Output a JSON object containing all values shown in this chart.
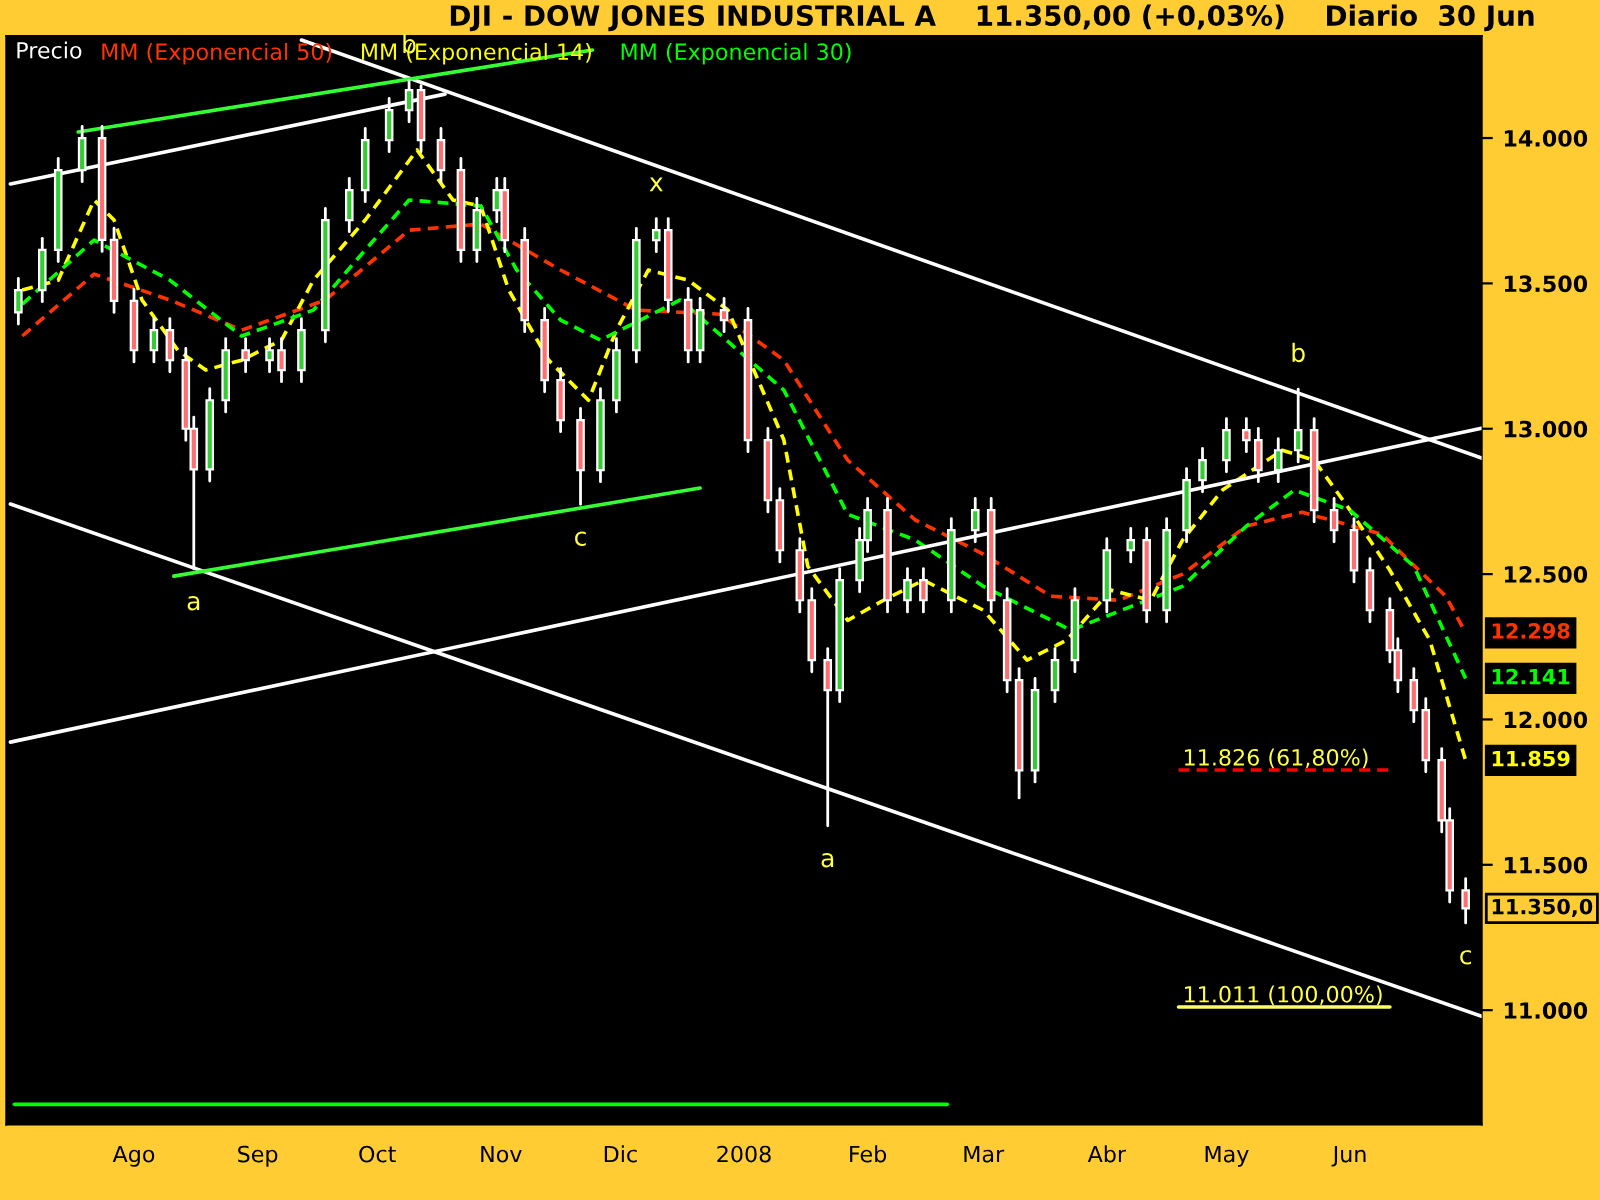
{
  "chart_data": {
    "type": "candlestick",
    "title": "DJI - DOW JONES INDUSTRIAL A    11.350,00 (+0,03%)    Diario  30 Jun",
    "x": [
      "2007-07-03",
      "2007-07-09",
      "2007-07-13",
      "2007-07-19",
      "2007-07-24",
      "2007-07-27",
      "2007-08-01",
      "2007-08-06",
      "2007-08-10",
      "2007-08-14",
      "2007-08-16",
      "2007-08-20",
      "2007-08-24",
      "2007-08-29",
      "2007-09-04",
      "2007-09-07",
      "2007-09-12",
      "2007-09-18",
      "2007-09-24",
      "2007-09-28",
      "2007-10-04",
      "2007-10-09",
      "2007-10-12",
      "2007-10-17",
      "2007-10-22",
      "2007-10-26",
      "2007-10-31",
      "2007-11-02",
      "2007-11-07",
      "2007-11-12",
      "2007-11-16",
      "2007-11-21",
      "2007-11-26",
      "2007-11-30",
      "2007-12-05",
      "2007-12-10",
      "2007-12-13",
      "2007-12-18",
      "2007-12-21",
      "2007-12-27",
      "2008-01-02",
      "2008-01-07",
      "2008-01-10",
      "2008-01-15",
      "2008-01-18",
      "2008-01-22",
      "2008-01-25",
      "2008-01-30",
      "2008-02-01",
      "2008-02-06",
      "2008-02-11",
      "2008-02-15",
      "2008-02-22",
      "2008-02-28",
      "2008-03-03",
      "2008-03-07",
      "2008-03-10",
      "2008-03-14",
      "2008-03-19",
      "2008-03-24",
      "2008-04-01",
      "2008-04-07",
      "2008-04-11",
      "2008-04-16",
      "2008-04-21",
      "2008-04-25",
      "2008-05-01",
      "2008-05-06",
      "2008-05-09",
      "2008-05-14",
      "2008-05-19",
      "2008-05-23",
      "2008-05-28",
      "2008-06-02",
      "2008-06-06",
      "2008-06-11",
      "2008-06-13",
      "2008-06-17",
      "2008-06-20",
      "2008-06-24",
      "2008-06-26",
      "2008-06-30"
    ],
    "ohlc": [
      [
        13400,
        13517,
        13360,
        13477
      ],
      [
        13477,
        13655,
        13437,
        13615
      ],
      [
        13615,
        13930,
        13575,
        13890
      ],
      [
        13890,
        14040,
        13850,
        14000
      ],
      [
        14000,
        14040,
        13610,
        13650
      ],
      [
        13650,
        13690,
        13400,
        13440
      ],
      [
        13440,
        13480,
        13230,
        13270
      ],
      [
        13270,
        13379,
        13230,
        13339
      ],
      [
        13339,
        13379,
        13196,
        13236
      ],
      [
        13236,
        13276,
        12960,
        13000
      ],
      [
        13000,
        13040,
        12518,
        12860
      ],
      [
        12860,
        13138,
        12820,
        13098
      ],
      [
        13098,
        13310,
        13058,
        13270
      ],
      [
        13270,
        13310,
        13196,
        13236
      ],
      [
        13236,
        13310,
        13196,
        13270
      ],
      [
        13270,
        13310,
        13162,
        13202
      ],
      [
        13202,
        13379,
        13162,
        13339
      ],
      [
        13339,
        13758,
        13299,
        13718
      ],
      [
        13718,
        13861,
        13678,
        13821
      ],
      [
        13821,
        14033,
        13781,
        13993
      ],
      [
        13993,
        14136,
        13953,
        14096
      ],
      [
        14096,
        14198,
        14056,
        14165
      ],
      [
        14165,
        14180,
        13953,
        13993
      ],
      [
        13993,
        14033,
        13850,
        13890
      ],
      [
        13890,
        13930,
        13575,
        13615
      ],
      [
        13615,
        13792,
        13575,
        13752
      ],
      [
        13752,
        13861,
        13712,
        13821
      ],
      [
        13821,
        13861,
        13609,
        13649
      ],
      [
        13649,
        13689,
        13334,
        13374
      ],
      [
        13374,
        13414,
        13127,
        13167
      ],
      [
        13167,
        13207,
        12990,
        13030
      ],
      [
        13030,
        13070,
        12740,
        12858
      ],
      [
        12858,
        13138,
        12818,
        13098
      ],
      [
        13098,
        13310,
        13058,
        13270
      ],
      [
        13270,
        13689,
        13230,
        13649
      ],
      [
        13649,
        13723,
        13609,
        13683
      ],
      [
        13683,
        13723,
        13403,
        13443
      ],
      [
        13443,
        13483,
        13230,
        13270
      ],
      [
        13270,
        13448,
        13230,
        13408
      ],
      [
        13408,
        13448,
        13334,
        13374
      ],
      [
        13374,
        13414,
        12921,
        12961
      ],
      [
        12961,
        13001,
        12714,
        12754
      ],
      [
        12754,
        12794,
        12542,
        12582
      ],
      [
        12582,
        12622,
        12370,
        12410
      ],
      [
        12410,
        12450,
        12164,
        12204
      ],
      [
        12204,
        12244,
        11634,
        12101
      ],
      [
        12101,
        12519,
        12061,
        12479
      ],
      [
        12479,
        12657,
        12439,
        12617
      ],
      [
        12617,
        12760,
        12577,
        12720
      ],
      [
        12720,
        12760,
        12370,
        12410
      ],
      [
        12410,
        12519,
        12370,
        12479
      ],
      [
        12479,
        12519,
        12370,
        12410
      ],
      [
        12410,
        12691,
        12370,
        12651
      ],
      [
        12651,
        12760,
        12611,
        12720
      ],
      [
        12720,
        12760,
        12370,
        12410
      ],
      [
        12410,
        12450,
        12095,
        12135
      ],
      [
        12135,
        12175,
        11730,
        11825
      ],
      [
        11825,
        12141,
        11785,
        12101
      ],
      [
        12101,
        12244,
        12061,
        12204
      ],
      [
        12204,
        12450,
        12164,
        12410
      ],
      [
        12410,
        12622,
        12370,
        12582
      ],
      [
        12582,
        12657,
        12542,
        12617
      ],
      [
        12617,
        12657,
        12336,
        12376
      ],
      [
        12376,
        12691,
        12336,
        12651
      ],
      [
        12651,
        12863,
        12611,
        12823
      ],
      [
        12823,
        12932,
        12783,
        12892
      ],
      [
        12892,
        13035,
        12852,
        12995
      ],
      [
        12995,
        13035,
        12921,
        12961
      ],
      [
        12961,
        13001,
        12818,
        12858
      ],
      [
        12858,
        12966,
        12818,
        12926
      ],
      [
        12926,
        13136,
        12886,
        12995
      ],
      [
        12995,
        13035,
        12680,
        12720
      ],
      [
        12720,
        12760,
        12611,
        12651
      ],
      [
        12651,
        12691,
        12473,
        12513
      ],
      [
        12513,
        12553,
        12336,
        12376
      ],
      [
        12376,
        12416,
        12198,
        12238
      ],
      [
        12238,
        12278,
        12095,
        12135
      ],
      [
        12135,
        12175,
        11992,
        12032
      ],
      [
        12032,
        12072,
        11820,
        11860
      ],
      [
        11860,
        11900,
        11613,
        11653
      ],
      [
        11653,
        11693,
        11372,
        11412
      ],
      [
        11412,
        11452,
        11300,
        11350
      ]
    ],
    "value_labels": [
      null,
      null,
      null,
      null,
      null,
      null,
      null,
      null,
      null,
      null,
      null,
      null,
      null,
      null,
      null,
      null,
      null,
      null,
      null,
      null,
      null,
      null,
      null,
      null,
      null,
      null,
      null,
      null,
      null,
      null,
      null,
      null,
      null,
      null,
      null,
      null,
      null,
      null,
      null,
      null,
      null,
      null,
      null,
      null,
      null,
      null,
      null,
      null,
      null,
      null,
      null,
      null,
      null,
      null,
      null,
      null,
      null,
      null,
      null,
      null,
      null,
      null,
      null,
      null,
      null,
      null,
      null,
      null,
      null,
      null,
      null,
      null,
      null,
      null,
      null,
      null,
      null,
      null,
      null,
      null,
      null,
      "11.350,0"
    ],
    "series": [
      {
        "type": "line",
        "name": "MM (Exponencial 50)",
        "color": "#ff3300",
        "line_style": "dashed",
        "x": [
          "2007-07-04",
          "2007-07-22",
          "2007-08-10",
          "2007-08-28",
          "2007-09-18",
          "2007-10-09",
          "2007-10-27",
          "2007-11-16",
          "2007-12-05",
          "2007-12-26",
          "2008-01-11",
          "2008-01-27",
          "2008-02-13",
          "2008-03-01",
          "2008-03-18",
          "2008-04-04",
          "2008-04-20",
          "2008-05-06",
          "2008-05-20",
          "2008-06-09",
          "2008-06-25",
          "2008-06-30"
        ],
        "values": [
          13319,
          13532,
          13443,
          13339,
          13443,
          13683,
          13704,
          13546,
          13408,
          13394,
          13236,
          12892,
          12686,
          12569,
          12424,
          12410,
          12500,
          12665,
          12713,
          12637,
          12424,
          12298
        ],
        "value_labels": [
          null,
          null,
          null,
          null,
          null,
          null,
          null,
          null,
          null,
          null,
          null,
          null,
          null,
          null,
          null,
          null,
          null,
          null,
          null,
          null,
          null,
          "12.298"
        ]
      },
      {
        "type": "line",
        "name": "MM (Exponencial 14)",
        "color": "#ffff00",
        "line_style": "dashed",
        "x": [
          "2007-07-04",
          "2007-07-13",
          "2007-07-22",
          "2007-07-27",
          "2007-08-03",
          "2007-08-12",
          "2007-08-19",
          "2007-08-28",
          "2007-09-07",
          "2007-09-15",
          "2007-09-28",
          "2007-10-11",
          "2007-10-20",
          "2007-10-27",
          "2007-11-03",
          "2007-11-13",
          "2007-11-23",
          "2007-11-30",
          "2007-12-08",
          "2007-12-18",
          "2007-12-28",
          "2008-01-11",
          "2008-01-17",
          "2008-01-27",
          "2008-02-05",
          "2008-02-15",
          "2008-03-01",
          "2008-03-12",
          "2008-03-22",
          "2008-04-02",
          "2008-04-12",
          "2008-04-20",
          "2008-04-30",
          "2008-05-15",
          "2008-05-23",
          "2008-06-01",
          "2008-06-11",
          "2008-06-21",
          "2008-06-30"
        ],
        "values": [
          13477,
          13511,
          13787,
          13718,
          13443,
          13270,
          13202,
          13236,
          13305,
          13511,
          13718,
          13959,
          13787,
          13766,
          13477,
          13236,
          13098,
          13339,
          13546,
          13511,
          13408,
          12961,
          12527,
          12341,
          12410,
          12479,
          12376,
          12204,
          12273,
          12445,
          12410,
          12617,
          12789,
          12926,
          12892,
          12720,
          12513,
          12273,
          11859
        ],
        "value_labels": [
          null,
          null,
          null,
          null,
          null,
          null,
          null,
          null,
          null,
          null,
          null,
          null,
          null,
          null,
          null,
          null,
          null,
          null,
          null,
          null,
          null,
          null,
          null,
          null,
          null,
          null,
          null,
          null,
          null,
          null,
          null,
          null,
          null,
          null,
          null,
          null,
          null,
          null,
          "11.859"
        ]
      },
      {
        "type": "line",
        "name": "MM (Exponencial 30)",
        "color": "#00ff00",
        "line_style": "dashed",
        "x": [
          "2007-07-04",
          "2007-07-22",
          "2007-08-10",
          "2007-08-28",
          "2007-09-15",
          "2007-09-28",
          "2007-10-09",
          "2007-10-27",
          "2007-11-05",
          "2007-11-16",
          "2007-11-26",
          "2007-12-16",
          "2008-01-11",
          "2008-01-27",
          "2008-02-13",
          "2008-03-01",
          "2008-03-23",
          "2008-04-20",
          "2008-05-06",
          "2008-05-18",
          "2008-06-01",
          "2008-06-17",
          "2008-06-30"
        ],
        "values": [
          13429,
          13649,
          13511,
          13319,
          13408,
          13615,
          13787,
          13766,
          13546,
          13374,
          13305,
          13443,
          13133,
          12706,
          12617,
          12458,
          12307,
          12458,
          12665,
          12789,
          12720,
          12527,
          12141
        ],
        "value_labels": [
          null,
          null,
          null,
          null,
          null,
          null,
          null,
          null,
          null,
          null,
          null,
          null,
          null,
          null,
          null,
          null,
          null,
          null,
          null,
          null,
          null,
          null,
          "12.141"
        ]
      },
      {
        "type": "line",
        "color": "#ffffff",
        "line_style": "solid",
        "x": [
          "2007-09-12",
          "2008-07-04"
        ],
        "values": [
          14337,
          12899
        ]
      },
      {
        "type": "line",
        "color": "#ffffff",
        "line_style": "solid",
        "x": [
          "2007-07-01",
          "2007-10-18"
        ],
        "values": [
          13842,
          14151
        ]
      },
      {
        "type": "line",
        "color": "#ffffff",
        "line_style": "solid",
        "x": [
          "2007-07-01",
          "2008-07-04"
        ],
        "values": [
          12741,
          10979
        ]
      },
      {
        "type": "line",
        "color": "#ffffff",
        "line_style": "solid",
        "x": [
          "2007-07-01",
          "2008-07-04"
        ],
        "values": [
          11922,
          13002
        ]
      },
      {
        "type": "line",
        "color": "#33ff33",
        "line_style": "solid",
        "x": [
          "2007-07-18",
          "2007-11-24"
        ],
        "values": [
          14021,
          14303
        ]
      },
      {
        "type": "line",
        "color": "#33ff33",
        "line_style": "solid",
        "x": [
          "2007-08-11",
          "2007-12-21"
        ],
        "values": [
          12493,
          12796
        ]
      },
      {
        "type": "line",
        "color": "#00ff00",
        "line_style": "solid",
        "x": [
          "2007-07-02",
          "2008-02-21"
        ],
        "values": [
          10676,
          10676
        ]
      },
      {
        "type": "line",
        "color": "#ff0000",
        "line_style": "dashed",
        "x": [
          "2008-04-19",
          "2008-06-11"
        ],
        "values": [
          11826,
          11826
        ]
      },
      {
        "type": "line",
        "color": "#ffff66",
        "line_style": "solid",
        "x": [
          "2008-04-19",
          "2008-06-11"
        ],
        "values": [
          11011,
          11011
        ]
      }
    ],
    "annotations": [
      "Precio",
      {
        "text": "11.826 (61,80%)",
        "x": "2008-04-20",
        "y": 11826
      },
      {
        "text": "11.011 (100,00%)",
        "x": "2008-04-20",
        "y": 11011
      },
      {
        "text": "b",
        "x": "2007-10-09",
        "y": 14198
      },
      {
        "text": "x",
        "x": "2007-12-10",
        "y": 13723
      },
      {
        "text": "c",
        "x": "2007-11-21",
        "y": 12740
      },
      {
        "text": "a",
        "x": "2007-08-16",
        "y": 12518
      },
      {
        "text": "a",
        "x": "2008-01-22",
        "y": 11634
      },
      {
        "text": "b",
        "x": "2008-05-19",
        "y": 13136
      },
      {
        "text": "c",
        "x": "2008-06-30",
        "y": 11300
      }
    ],
    "xlim": [
      "2007-06-30",
      "2008-07-04"
    ],
    "xticks": [
      {
        "value": "2007-08-01",
        "label": "Ago"
      },
      {
        "value": "2007-09-01",
        "label": "Sep"
      },
      {
        "value": "2007-10-01",
        "label": "Oct"
      },
      {
        "value": "2007-11-01",
        "label": "Nov"
      },
      {
        "value": "2007-12-01",
        "label": "Dic"
      },
      {
        "value": "2008-01-01",
        "label": "2008"
      },
      {
        "value": "2008-02-01",
        "label": "Feb"
      },
      {
        "value": "2008-03-01",
        "label": "Mar"
      },
      {
        "value": "2008-04-01",
        "label": "Abr"
      },
      {
        "value": "2008-05-01",
        "label": "May"
      },
      {
        "value": "2008-06-01",
        "label": "Jun"
      }
    ],
    "ylim": [
      10607,
      14351
    ],
    "yticks": [
      {
        "value": 11000,
        "label": "11.000"
      },
      {
        "value": 11500,
        "label": "11.500"
      },
      {
        "value": 12000,
        "label": "12.000"
      },
      {
        "value": 12500,
        "label": "12.500"
      },
      {
        "value": 13000,
        "label": "13.000"
      },
      {
        "value": 13500,
        "label": "13.500"
      },
      {
        "value": 14000,
        "label": "14.000"
      }
    ],
    "grid": false,
    "legend": "top left"
  }
}
